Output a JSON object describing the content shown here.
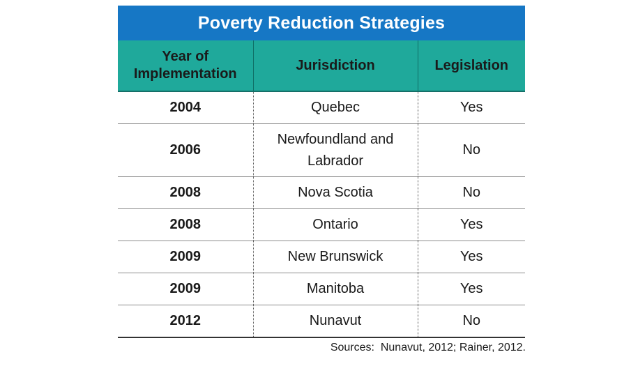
{
  "title": "Poverty Reduction Strategies",
  "headers": {
    "year_line1": "Year of",
    "year_line2": "Implementation",
    "jurisdiction": "Jurisdiction",
    "legislation": "Legislation"
  },
  "rows": [
    {
      "year": "2004",
      "jurisdiction": "Quebec",
      "legislation": "Yes"
    },
    {
      "year": "2006",
      "jurisdiction_line1": "Newfoundland and",
      "jurisdiction_line2": "Labrador",
      "legislation": "No"
    },
    {
      "year": "2008",
      "jurisdiction": "Nova Scotia",
      "legislation": "No"
    },
    {
      "year": "2008",
      "jurisdiction": "Ontario",
      "legislation": "Yes"
    },
    {
      "year": "2009",
      "jurisdiction": "New Brunswick",
      "legislation": "Yes"
    },
    {
      "year": "2009",
      "jurisdiction": "Manitoba",
      "legislation": "Yes"
    },
    {
      "year": "2012",
      "jurisdiction": "Nunavut",
      "legislation": "No"
    }
  ],
  "source": "Sources:  Nunavut, 2012; Rainer, 2012.",
  "colors": {
    "title_bar": "#1677c5",
    "header_row": "#1fa99b"
  }
}
